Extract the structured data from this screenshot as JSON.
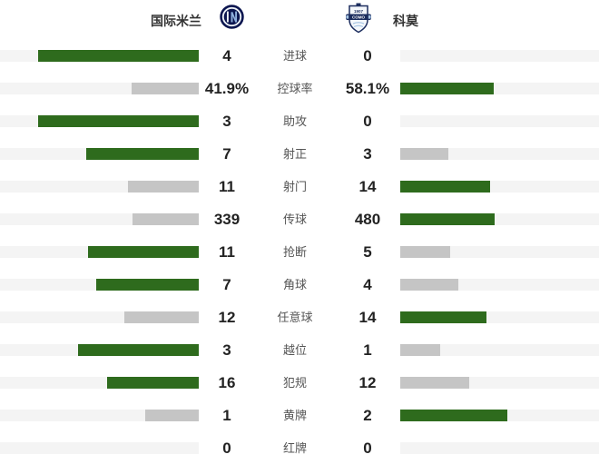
{
  "header": {
    "home_team": "国际米兰",
    "away_team": "科莫",
    "home_logo": "inter-milan-crest",
    "away_logo": "como-1907-crest",
    "away_logo_text": "COMO",
    "away_logo_year": "1907"
  },
  "chart_data": {
    "type": "bar",
    "subtype": "head-to-head-horizontal-comparison",
    "title": "",
    "teams": {
      "home": "国际米兰",
      "away": "科莫"
    },
    "legend_position": "none",
    "grid": false,
    "bar_rule": "bar width = value / (home + away) of row; larger value is green, smaller is grey; zero = empty track",
    "rows": [
      {
        "label": "进球",
        "home": "4",
        "away": "0",
        "home_value": 4,
        "away_value": 0
      },
      {
        "label": "控球率",
        "home": "41.9%",
        "away": "58.1%",
        "home_value": 41.9,
        "away_value": 58.1
      },
      {
        "label": "助攻",
        "home": "3",
        "away": "0",
        "home_value": 3,
        "away_value": 0
      },
      {
        "label": "射正",
        "home": "7",
        "away": "3",
        "home_value": 7,
        "away_value": 3
      },
      {
        "label": "射门",
        "home": "11",
        "away": "14",
        "home_value": 11,
        "away_value": 14
      },
      {
        "label": "传球",
        "home": "339",
        "away": "480",
        "home_value": 339,
        "away_value": 480
      },
      {
        "label": "抢断",
        "home": "11",
        "away": "5",
        "home_value": 11,
        "away_value": 5
      },
      {
        "label": "角球",
        "home": "7",
        "away": "4",
        "home_value": 7,
        "away_value": 4
      },
      {
        "label": "任意球",
        "home": "12",
        "away": "14",
        "home_value": 12,
        "away_value": 14
      },
      {
        "label": "越位",
        "home": "3",
        "away": "1",
        "home_value": 3,
        "away_value": 1
      },
      {
        "label": "犯规",
        "home": "16",
        "away": "12",
        "home_value": 16,
        "away_value": 12
      },
      {
        "label": "黄牌",
        "home": "1",
        "away": "2",
        "home_value": 1,
        "away_value": 2
      },
      {
        "label": "红牌",
        "home": "0",
        "away": "0",
        "home_value": 0,
        "away_value": 0
      }
    ],
    "colors": {
      "leader_bar": "#2e6b1d",
      "trailer_bar": "#c5c5c5",
      "bar_track": "#f4f4f4",
      "inter_navy": "#0c1650",
      "inter_light_blue": "#8fb0de",
      "como_navy": "#1c2d5e",
      "como_light_blue": "#a8c6e4"
    }
  }
}
